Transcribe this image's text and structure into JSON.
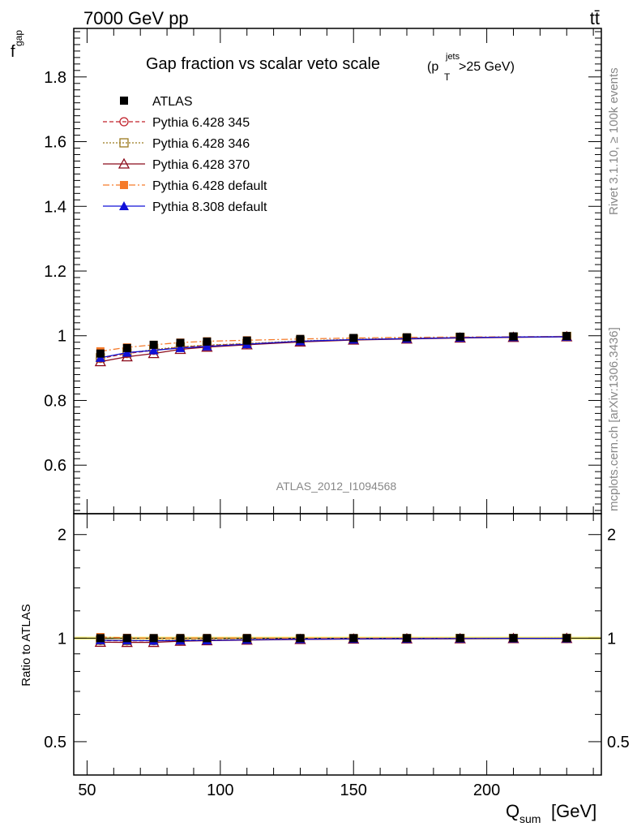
{
  "header": {
    "left": "7000 GeV pp",
    "right": "tt̄"
  },
  "side_text": {
    "rivet": "Rivet 3.1.10, ≥ 100k events",
    "mcplots": "mcplots.cern.ch [arXiv:1306.3436]"
  },
  "analysis_tag": "ATLAS_2012_I1094568",
  "chart_data": {
    "type": "line",
    "title_main": "Gap fraction vs scalar veto scale",
    "title_cut": "(p",
    "title_sup": "jets",
    "title_sub": "T",
    "title_tail": ">25 GeV)",
    "xlabel_main": "Q",
    "xlabel_sub": "sum",
    "xlabel_unit": "[GeV]",
    "ylabel_main": "f",
    "ylabel_sub": "gap",
    "ratio_ylabel": "Ratio to ATLAS",
    "xlim": [
      45,
      243
    ],
    "ylim": [
      0.45,
      1.95
    ],
    "ratio_ylim": [
      0.4,
      2.3
    ],
    "x_ticks": [
      50,
      100,
      150,
      200
    ],
    "y_ticks": [
      0.6,
      0.8,
      1,
      1.2,
      1.4,
      1.6,
      1.8
    ],
    "ratio_y_ticks": [
      0.5,
      1,
      2
    ],
    "x": [
      55,
      65,
      75,
      85,
      95,
      110,
      130,
      150,
      170,
      190,
      210,
      230
    ],
    "series": [
      {
        "name": "ATLAS",
        "color": "#000000",
        "marker": "square-filled",
        "line": "none",
        "values": [
          0.945,
          0.962,
          0.972,
          0.978,
          0.982,
          0.985,
          0.99,
          0.993,
          0.995,
          0.997,
          0.998,
          0.999
        ]
      },
      {
        "name": "Pythia 6.428 345",
        "color": "#c0202a",
        "marker": "circle-open",
        "line": "dashed",
        "values": [
          0.93,
          0.945,
          0.955,
          0.965,
          0.97,
          0.975,
          0.983,
          0.988,
          0.991,
          0.994,
          0.996,
          0.997
        ]
      },
      {
        "name": "Pythia 6.428 346",
        "color": "#9b7a1e",
        "marker": "square-open",
        "line": "dotted",
        "values": [
          0.932,
          0.947,
          0.957,
          0.966,
          0.971,
          0.976,
          0.984,
          0.989,
          0.992,
          0.995,
          0.996,
          0.998
        ]
      },
      {
        "name": "Pythia 6.428 370",
        "color": "#8b0a1a",
        "marker": "triangle-open",
        "line": "solid",
        "values": [
          0.92,
          0.935,
          0.945,
          0.958,
          0.965,
          0.972,
          0.981,
          0.987,
          0.99,
          0.993,
          0.995,
          0.997
        ]
      },
      {
        "name": "Pythia 6.428 default",
        "color": "#f57a2a",
        "marker": "square-filled",
        "line": "dashdot",
        "values": [
          0.952,
          0.964,
          0.972,
          0.979,
          0.983,
          0.986,
          0.99,
          0.993,
          0.995,
          0.996,
          0.997,
          0.998
        ]
      },
      {
        "name": "Pythia 8.308 default",
        "color": "#1010d8",
        "marker": "triangle-filled",
        "line": "solid",
        "values": [
          0.932,
          0.948,
          0.955,
          0.962,
          0.967,
          0.974,
          0.983,
          0.988,
          0.991,
          0.994,
          0.996,
          0.997
        ]
      }
    ],
    "ratio_values": {
      "Pythia 6.428 345": [
        0.984,
        0.982,
        0.983,
        0.987,
        0.988,
        0.99,
        0.993,
        0.995,
        0.996,
        0.997,
        0.998,
        0.998
      ],
      "Pythia 6.428 346": [
        0.986,
        0.984,
        0.985,
        0.988,
        0.989,
        0.991,
        0.994,
        0.996,
        0.997,
        0.998,
        0.998,
        0.999
      ],
      "Pythia 6.428 370": [
        0.973,
        0.972,
        0.972,
        0.98,
        0.983,
        0.987,
        0.991,
        0.994,
        0.995,
        0.996,
        0.997,
        0.998
      ],
      "Pythia 6.428 default": [
        1.007,
        1.002,
        1.0,
        1.001,
        1.001,
        1.001,
        1.0,
        1.0,
        1.0,
        0.999,
        0.999,
        0.999
      ],
      "Pythia 8.308 default": [
        0.986,
        0.985,
        0.983,
        0.984,
        0.985,
        0.989,
        0.993,
        0.995,
        0.996,
        0.997,
        0.998,
        0.998
      ]
    },
    "legend_placement": "top-left",
    "grid": false
  }
}
